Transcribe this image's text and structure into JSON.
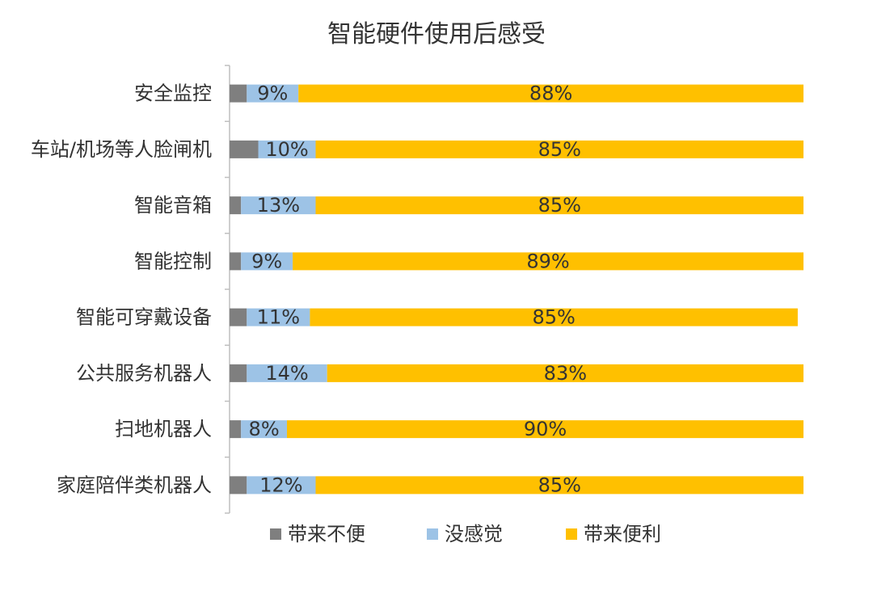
{
  "chart_data": {
    "type": "bar",
    "orientation": "horizontal",
    "stacked": true,
    "title": "智能硬件使用后感受",
    "categories": [
      "安全监控",
      "车站/机场等人脸闸机",
      "智能音箱",
      "智能控制",
      "智能可穿戴设备",
      "公共服务机器人",
      "扫地机器人",
      "家庭陪伴类机器人"
    ],
    "series": [
      {
        "name": "带来不便",
        "color": "#7f7f7f",
        "values": [
          3,
          5,
          2,
          2,
          3,
          3,
          2,
          3
        ],
        "labels": [
          "",
          "",
          "",
          "",
          "",
          "",
          "",
          ""
        ]
      },
      {
        "name": "没感觉",
        "color": "#9dc3e6",
        "values": [
          9,
          10,
          13,
          9,
          11,
          14,
          8,
          12
        ],
        "labels": [
          "9%",
          "10%",
          "13%",
          "9%",
          "11%",
          "14%",
          "8%",
          "12%"
        ]
      },
      {
        "name": "带来便利",
        "color": "#ffc000",
        "values": [
          88,
          85,
          85,
          89,
          85,
          83,
          90,
          85
        ],
        "labels": [
          "88%",
          "85%",
          "85%",
          "89%",
          "85%",
          "83%",
          "90%",
          "85%"
        ]
      }
    ],
    "xlim": [
      0,
      100
    ],
    "grid": false,
    "legend_position": "bottom"
  }
}
